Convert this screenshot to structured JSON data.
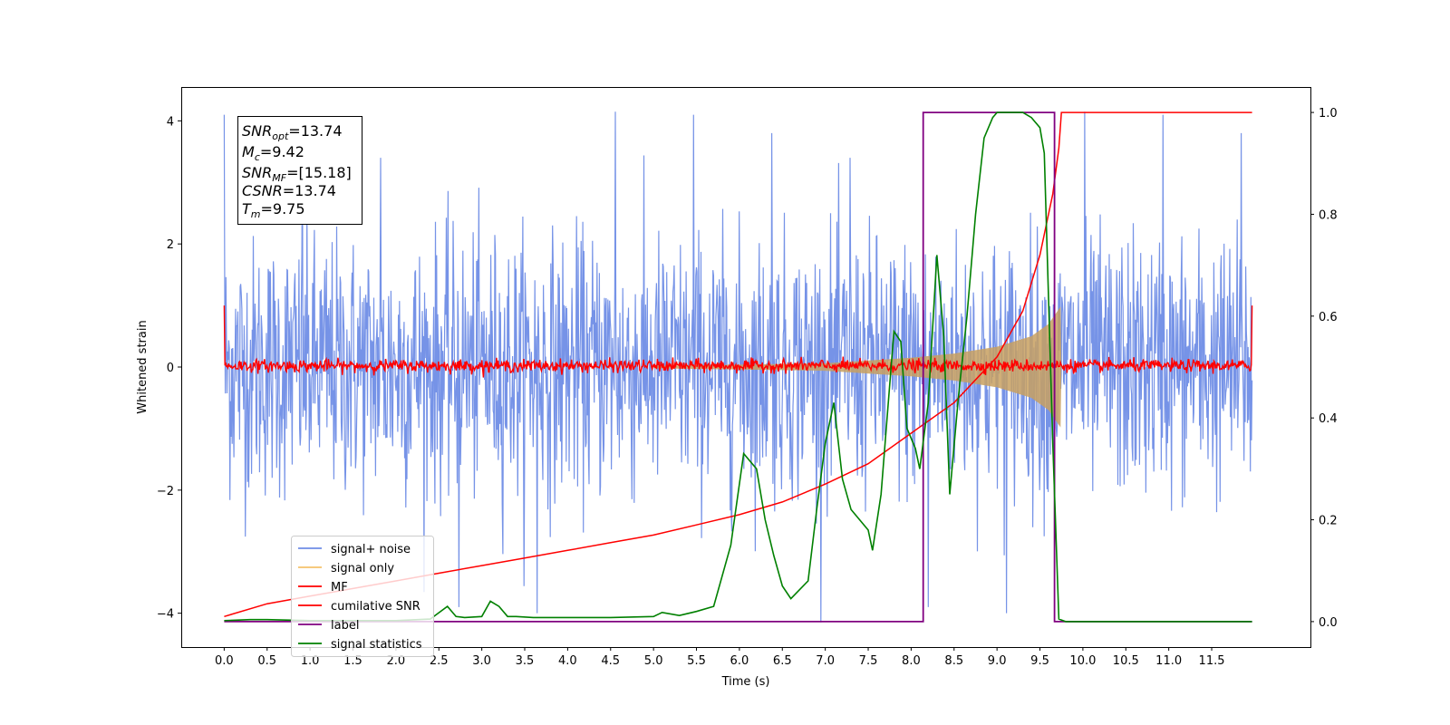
{
  "chart_data": {
    "type": "line",
    "xlabel": "Time (s)",
    "ylabel": "Whitened strain",
    "xlim": [
      -0.5,
      12.65
    ],
    "ylim": [
      -4.55,
      4.55
    ],
    "y2lim": [
      -0.05,
      1.05
    ],
    "grid": false,
    "legend_position": "lower-left",
    "x_ticks": [
      "0.0",
      "0.5",
      "1.0",
      "1.5",
      "2.0",
      "2.5",
      "3.0",
      "3.5",
      "4.0",
      "4.5",
      "5.0",
      "5.5",
      "6.0",
      "6.5",
      "7.0",
      "7.5",
      "8.0",
      "8.5",
      "9.0",
      "9.5",
      "10.0",
      "10.5",
      "11.0",
      "11.5"
    ],
    "y_ticks": [
      "−4",
      "−2",
      "0",
      "2",
      "4"
    ],
    "y2_ticks": [
      "0.0",
      "0.2",
      "0.4",
      "0.6",
      "0.8",
      "1.0"
    ],
    "annotation": {
      "snr_opt": {
        "base": "SNR",
        "sub": "opt",
        "value": "=13.74"
      },
      "mc": {
        "base": "M",
        "sub": "c",
        "value": "=9.42"
      },
      "snr_mf": {
        "base": "SNR",
        "sub": "MF",
        "value": "=[15.18]"
      },
      "csnr": {
        "base": "CSNR",
        "value": "=13.74"
      },
      "tm": {
        "base": "T",
        "sub": "m",
        "value": "=9.75"
      }
    },
    "series": [
      {
        "name": "signal+ noise",
        "color": "#6f8de6",
        "axis": "left",
        "kind": "gaussian-noise",
        "x_range": [
          0.0,
          11.97
        ],
        "std": 1.05,
        "peak_examples": [
          4.1,
          3.8,
          3.4,
          -3.9,
          -4.0,
          4.15
        ]
      },
      {
        "name": "signal only",
        "color": "#f5c26b",
        "axis": "left",
        "kind": "chirp-envelope",
        "x_range": [
          5.0,
          9.75
        ],
        "envelope": [
          [
            5.0,
            0.02
          ],
          [
            7.0,
            0.06
          ],
          [
            8.0,
            0.15
          ],
          [
            8.5,
            0.22
          ],
          [
            9.0,
            0.33
          ],
          [
            9.4,
            0.5
          ],
          [
            9.6,
            0.7
          ],
          [
            9.74,
            0.98
          ]
        ]
      },
      {
        "name": "MF",
        "color": "#ff0000",
        "axis": "left",
        "kind": "noise",
        "x_range": [
          0.0,
          11.97
        ],
        "mean": 0.02,
        "std": 0.05,
        "edge_values": [
          1.0,
          1.0
        ]
      },
      {
        "name": "cumilative SNR",
        "color": "#ff0000",
        "axis": "right",
        "x": [
          0.0,
          0.5,
          1.0,
          1.5,
          2.0,
          2.5,
          3.0,
          3.5,
          4.0,
          4.5,
          5.0,
          5.5,
          6.0,
          6.5,
          7.0,
          7.5,
          8.0,
          8.5,
          9.0,
          9.3,
          9.5,
          9.65,
          9.72,
          9.75,
          11.97
        ],
        "y": [
          0.01,
          0.035,
          0.05,
          0.065,
          0.08,
          0.095,
          0.11,
          0.125,
          0.14,
          0.155,
          0.17,
          0.19,
          0.21,
          0.235,
          0.27,
          0.31,
          0.37,
          0.43,
          0.52,
          0.61,
          0.72,
          0.84,
          0.93,
          1.0,
          1.0
        ]
      },
      {
        "name": "label",
        "color": "#800080",
        "axis": "right",
        "x": [
          0.0,
          8.14,
          8.14,
          9.67,
          9.67,
          11.97
        ],
        "y": [
          0.0,
          0.0,
          1.0,
          1.0,
          0.0,
          0.0
        ]
      },
      {
        "name": "signal statistics",
        "color": "#008000",
        "axis": "right",
        "x": [
          0.0,
          0.3,
          0.5,
          1.0,
          1.5,
          2.0,
          2.4,
          2.6,
          2.7,
          2.8,
          3.0,
          3.1,
          3.2,
          3.3,
          3.4,
          3.6,
          4.0,
          4.5,
          5.0,
          5.1,
          5.3,
          5.5,
          5.7,
          5.9,
          6.05,
          6.2,
          6.3,
          6.4,
          6.5,
          6.6,
          6.8,
          6.9,
          7.0,
          7.1,
          7.2,
          7.3,
          7.4,
          7.5,
          7.55,
          7.65,
          7.8,
          7.88,
          7.95,
          8.05,
          8.1,
          8.2,
          8.3,
          8.38,
          8.45,
          8.55,
          8.65,
          8.75,
          8.85,
          8.95,
          9.0,
          9.1,
          9.3,
          9.4,
          9.5,
          9.55,
          9.65,
          9.72,
          9.8,
          10.0,
          11.97
        ],
        "y": [
          0.002,
          0.004,
          0.004,
          0.002,
          0.002,
          0.002,
          0.005,
          0.03,
          0.01,
          0.008,
          0.01,
          0.04,
          0.03,
          0.01,
          0.01,
          0.008,
          0.008,
          0.008,
          0.01,
          0.018,
          0.012,
          0.02,
          0.03,
          0.15,
          0.33,
          0.3,
          0.2,
          0.13,
          0.07,
          0.045,
          0.08,
          0.22,
          0.35,
          0.43,
          0.28,
          0.22,
          0.2,
          0.18,
          0.14,
          0.25,
          0.57,
          0.55,
          0.38,
          0.34,
          0.3,
          0.43,
          0.72,
          0.56,
          0.25,
          0.44,
          0.6,
          0.8,
          0.95,
          0.99,
          1.0,
          1.0,
          1.0,
          0.99,
          0.97,
          0.92,
          0.35,
          0.005,
          0.0,
          0.0,
          0.0
        ]
      }
    ]
  }
}
